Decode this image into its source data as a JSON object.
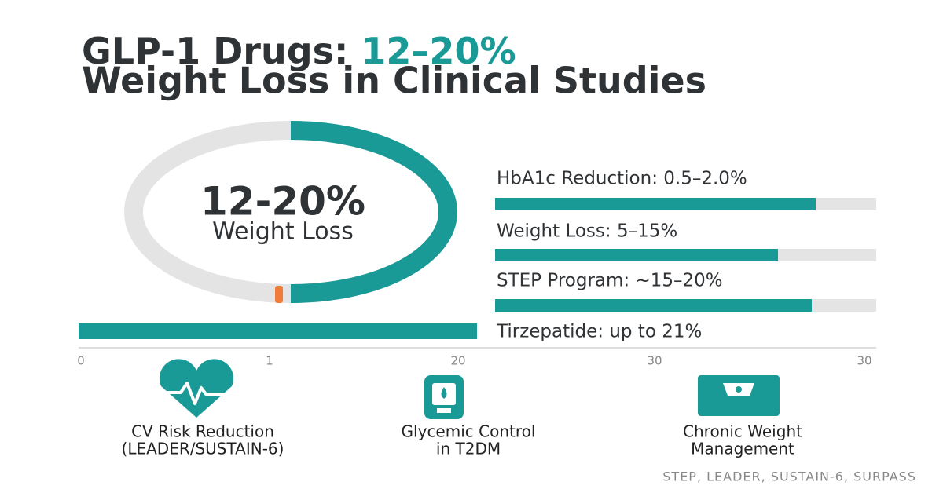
{
  "title": {
    "line1_prefix": "GLP-1 Drugs:",
    "line1_highlight": "12–20%",
    "line2": "Weight Loss in Clinical Studies"
  },
  "donut": {
    "value": "12-20%",
    "label": "Weight Loss"
  },
  "bars": [
    {
      "label": "HbA1c Reduction: 0.5–2.0%"
    },
    {
      "label": "Weight Loss: 5–15%"
    },
    {
      "label": "STEP Program: ~15–20%"
    },
    {
      "label": "Tirzepatide: up to 21%"
    }
  ],
  "axis": {
    "ticks": [
      "0",
      "1",
      "20",
      "30",
      "30"
    ]
  },
  "features": [
    {
      "lines": [
        "CV Risk Reduction",
        "(LEADER/SUSTAIN-6)"
      ]
    },
    {
      "lines": [
        "Glycemic Control",
        "in T2DM"
      ]
    },
    {
      "lines": [
        "Chronic Weight",
        "Management"
      ]
    }
  ],
  "footer": "STEP, LEADER, SUSTAIN-6, SURPASS"
}
